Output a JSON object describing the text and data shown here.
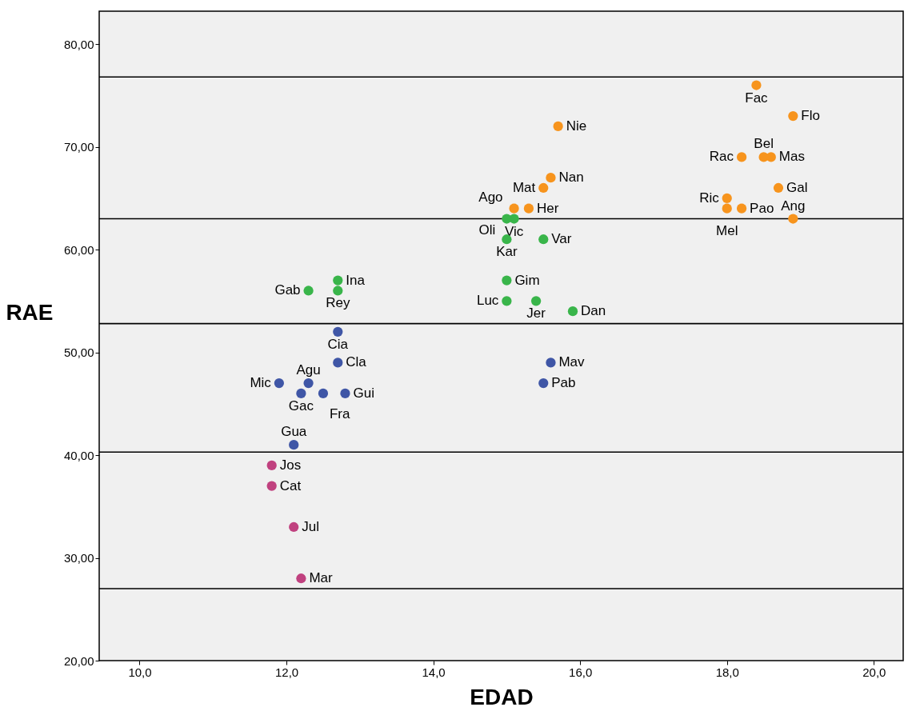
{
  "chart_data": {
    "type": "scatter",
    "xlabel": "EDAD",
    "ylabel": "RAE",
    "xlim": [
      9.45,
      20.4
    ],
    "ylim": [
      20,
      83.2
    ],
    "xticks": [
      {
        "value": 10,
        "label": "10,0"
      },
      {
        "value": 12,
        "label": "12,0"
      },
      {
        "value": 14,
        "label": "14,0"
      },
      {
        "value": 16,
        "label": "16,0"
      },
      {
        "value": 18,
        "label": "18,0"
      },
      {
        "value": 20,
        "label": "20,0"
      }
    ],
    "yticks": [
      {
        "value": 20,
        "label": "20,00"
      },
      {
        "value": 30,
        "label": "30,00"
      },
      {
        "value": 40,
        "label": "40,00"
      },
      {
        "value": 50,
        "label": "50,00"
      },
      {
        "value": 60,
        "label": "60,00"
      },
      {
        "value": 70,
        "label": "70,00"
      },
      {
        "value": 80,
        "label": "80,00"
      }
    ],
    "grid": false,
    "legend": false,
    "marker": "circle",
    "series": [
      {
        "color": "#f7941d",
        "x": [
          18.4,
          18.9,
          15.7,
          18.5,
          18.2,
          18.6,
          18.7,
          18.0,
          18.2,
          18.0,
          18.9,
          15.6,
          15.5,
          15.1,
          15.3
        ],
        "values": [
          76,
          73,
          72,
          69,
          69,
          69,
          66,
          65,
          64,
          64,
          63,
          67,
          66,
          64,
          64
        ]
      },
      {
        "color": "#39b54a",
        "x": [
          15.1,
          15.0,
          15.0,
          15.5,
          15.0,
          15.4,
          15.0,
          15.9,
          12.7,
          12.7,
          12.3
        ],
        "values": [
          63,
          63,
          61,
          61,
          57,
          55,
          55,
          54,
          57,
          56,
          56
        ]
      },
      {
        "color": "#3f56a6",
        "x": [
          12.7,
          12.7,
          11.9,
          12.3,
          12.2,
          12.5,
          12.8,
          12.1,
          15.6,
          15.5
        ],
        "values": [
          52,
          49,
          47,
          47,
          46,
          46,
          46,
          41,
          49,
          47
        ]
      },
      {
        "color": "#c0417f",
        "x": [
          11.8,
          11.8,
          12.1,
          12.2
        ],
        "values": [
          39,
          37,
          33,
          28
        ]
      }
    ],
    "ref_lines": [
      {
        "axis": "y",
        "value": 76.8,
        "color": "#000000"
      },
      {
        "axis": "y",
        "value": 63.0,
        "color": "#000000"
      },
      {
        "axis": "y",
        "value": 52.8,
        "color": "#000000"
      },
      {
        "axis": "y",
        "value": 40.3,
        "color": "#000000"
      },
      {
        "axis": "y",
        "value": 27.0,
        "color": "#000000"
      }
    ],
    "annotations": [
      {
        "text": "Fac",
        "x": 18.4,
        "y": 76
      },
      {
        "text": "Flo",
        "x": 18.9,
        "y": 73
      },
      {
        "text": "Nie",
        "x": 15.7,
        "y": 72
      },
      {
        "text": "Bel",
        "x": 18.5,
        "y": 69
      },
      {
        "text": "Rac",
        "x": 18.2,
        "y": 69
      },
      {
        "text": "Mas",
        "x": 18.6,
        "y": 69
      },
      {
        "text": "Gal",
        "x": 18.7,
        "y": 66
      },
      {
        "text": "Ric",
        "x": 18.0,
        "y": 65
      },
      {
        "text": "Pao",
        "x": 18.2,
        "y": 64
      },
      {
        "text": "Mel",
        "x": 18.0,
        "y": 64
      },
      {
        "text": "Ang",
        "x": 18.9,
        "y": 63
      },
      {
        "text": "Nan",
        "x": 15.6,
        "y": 67
      },
      {
        "text": "Mat",
        "x": 15.5,
        "y": 66
      },
      {
        "text": "Ago",
        "x": 15.1,
        "y": 64
      },
      {
        "text": "Her",
        "x": 15.3,
        "y": 64
      },
      {
        "text": "Vic",
        "x": 15.1,
        "y": 63
      },
      {
        "text": "Oli",
        "x": 15.0,
        "y": 63
      },
      {
        "text": "Kar",
        "x": 15.0,
        "y": 61
      },
      {
        "text": "Var",
        "x": 15.5,
        "y": 61
      },
      {
        "text": "Gim",
        "x": 15.0,
        "y": 57
      },
      {
        "text": "Jer",
        "x": 15.4,
        "y": 55
      },
      {
        "text": "Luc",
        "x": 15.0,
        "y": 55
      },
      {
        "text": "Dan",
        "x": 15.9,
        "y": 54
      },
      {
        "text": "Ina",
        "x": 12.7,
        "y": 57
      },
      {
        "text": "Rey",
        "x": 12.7,
        "y": 56
      },
      {
        "text": "Gab",
        "x": 12.3,
        "y": 56
      },
      {
        "text": "Cia",
        "x": 12.7,
        "y": 52
      },
      {
        "text": "Cla",
        "x": 12.7,
        "y": 49
      },
      {
        "text": "Mic",
        "x": 11.9,
        "y": 47
      },
      {
        "text": "Agu",
        "x": 12.3,
        "y": 47
      },
      {
        "text": "Gac",
        "x": 12.2,
        "y": 46
      },
      {
        "text": "Fra",
        "x": 12.5,
        "y": 46
      },
      {
        "text": "Gui",
        "x": 12.8,
        "y": 46
      },
      {
        "text": "Gua",
        "x": 12.1,
        "y": 41
      },
      {
        "text": "Mav",
        "x": 15.6,
        "y": 49
      },
      {
        "text": "Pab",
        "x": 15.5,
        "y": 47
      },
      {
        "text": "Jos",
        "x": 11.8,
        "y": 39
      },
      {
        "text": "Cat",
        "x": 11.8,
        "y": 37
      },
      {
        "text": "Jul",
        "x": 12.1,
        "y": 33
      },
      {
        "text": "Mar",
        "x": 12.2,
        "y": 28
      }
    ]
  }
}
